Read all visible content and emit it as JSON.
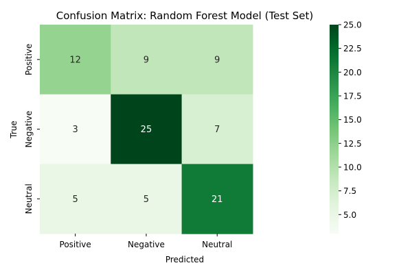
{
  "chart_data": {
    "type": "heatmap",
    "title": "Confusion Matrix: Random Forest Model (Test Set)",
    "xlabel": "Predicted",
    "ylabel": "True",
    "x_categories": [
      "Positive",
      "Negative",
      "Neutral"
    ],
    "y_categories": [
      "Positive",
      "Negative",
      "Neutral"
    ],
    "values": [
      [
        12,
        9,
        9
      ],
      [
        3,
        25,
        7
      ],
      [
        5,
        5,
        21
      ]
    ],
    "colormap": "Greens",
    "vmin": 3,
    "vmax": 25,
    "colorbar_ticks": [
      5.0,
      7.5,
      10.0,
      12.5,
      15.0,
      17.5,
      20.0,
      22.5,
      25.0
    ],
    "colorbar_tick_labels": [
      "5.0",
      "7.5",
      "10.0",
      "12.5",
      "15.0",
      "17.5",
      "20.0",
      "22.5",
      "25.0"
    ],
    "annotation_color_light": "#ffffff",
    "annotation_color_dark": "#262626"
  }
}
